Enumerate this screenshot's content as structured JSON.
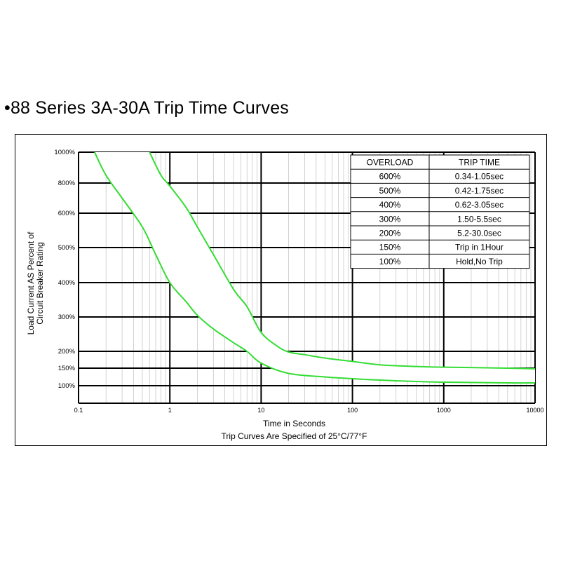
{
  "header": {
    "title": "•88 Series 3A-30A Trip Time Curves"
  },
  "colors": {
    "curve": "#33dd33",
    "grid_major": "#000000",
    "grid_minor": "#c8c8c8",
    "band_fill": "#ffffff"
  },
  "chart_data": {
    "type": "line",
    "xlabel": "Time in Seconds",
    "subtitle": "Trip Curves Are Specified of 25°C/77°F",
    "ylabel_line1": "Load Current AS Percent of",
    "ylabel_line2": "Circuit Breaker Rating",
    "x_scale": "log",
    "xlim": [
      0.1,
      10000
    ],
    "ylim": [
      0,
      1000
    ],
    "x_ticks": [
      {
        "value": 0.1,
        "label": "0.1"
      },
      {
        "value": 1,
        "label": "1"
      },
      {
        "value": 10,
        "label": "10"
      },
      {
        "value": 100,
        "label": "100"
      },
      {
        "value": 1000,
        "label": "1000"
      },
      {
        "value": 10000,
        "label": "10000"
      }
    ],
    "y_ticks": [
      {
        "value": 100,
        "label": "100%"
      },
      {
        "value": 150,
        "label": "150%"
      },
      {
        "value": 200,
        "label": "200%"
      },
      {
        "value": 300,
        "label": "300%"
      },
      {
        "value": 400,
        "label": "400%"
      },
      {
        "value": 500,
        "label": "500%"
      },
      {
        "value": 600,
        "label": "600%"
      },
      {
        "value": 800,
        "label": "800%"
      },
      {
        "value": 1000,
        "label": "1000%"
      }
    ],
    "grid": true,
    "series": [
      {
        "x": [
          0.15,
          0.2,
          0.3,
          0.5,
          0.7,
          1,
          1.5,
          2,
          3,
          5,
          7,
          10,
          20,
          50,
          100,
          200,
          500,
          1000,
          5000,
          10000
        ],
        "y": [
          1000,
          850,
          700,
          560,
          480,
          400,
          345,
          305,
          265,
          225,
          200,
          165,
          135,
          125,
          120,
          116,
          112,
          110,
          108,
          108
        ]
      },
      {
        "x": [
          0.6,
          0.8,
          1,
          1.5,
          2,
          3,
          5,
          7,
          10,
          15,
          20,
          30,
          50,
          100,
          200,
          500,
          1000,
          5000,
          10000
        ],
        "y": [
          1000,
          850,
          780,
          640,
          560,
          480,
          380,
          330,
          255,
          215,
          198,
          190,
          180,
          170,
          160,
          155,
          153,
          150,
          148
        ]
      }
    ],
    "table": {
      "headers": [
        "OVERLOAD",
        "TRIP TIME"
      ],
      "rows": [
        [
          "600%",
          "0.34-1.05sec"
        ],
        [
          "500%",
          "0.42-1.75sec"
        ],
        [
          "400%",
          "0.62-3.05sec"
        ],
        [
          "300%",
          "1.50-5.5sec"
        ],
        [
          "200%",
          "5.2-30.0sec"
        ],
        [
          "150%",
          "Trip in 1Hour"
        ],
        [
          "100%",
          "Hold,No Trip"
        ]
      ]
    }
  }
}
